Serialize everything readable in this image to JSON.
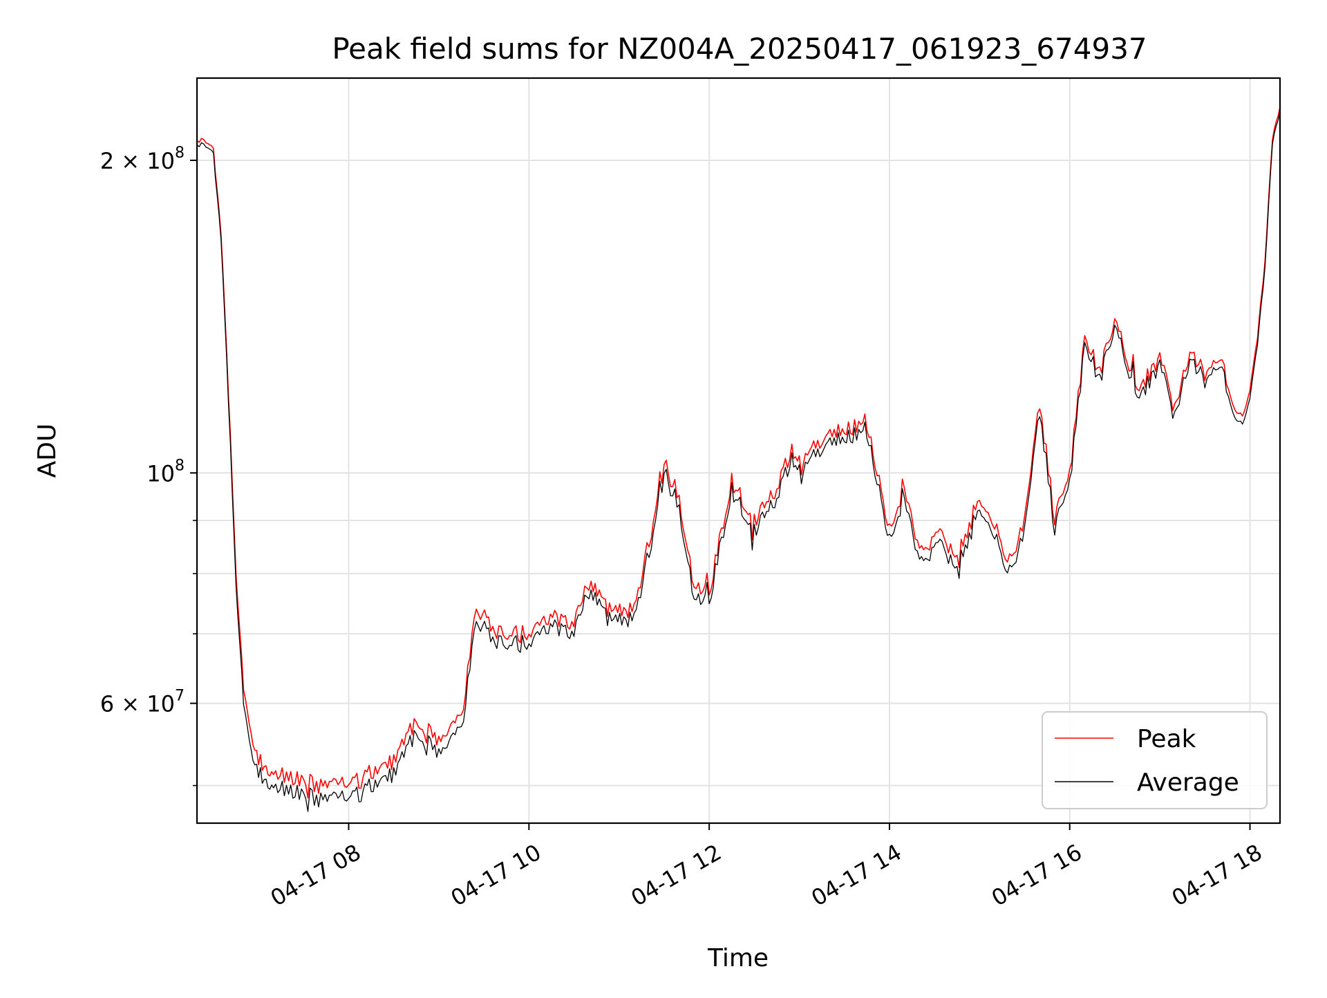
{
  "chart_data": {
    "type": "line",
    "title": "Peak field sums for NZ004A_20250417_061923_674937",
    "xlabel": "Time",
    "ylabel": "ADU",
    "x_scale": "time",
    "y_scale": "log",
    "xlim": [
      "2025-04-17 06:19",
      "2025-04-17 18:20"
    ],
    "ylim": [
      46000000,
      240000000
    ],
    "x_ticks": [
      {
        "value": "2025-04-17 08:00",
        "label": "04-17 08"
      },
      {
        "value": "2025-04-17 10:00",
        "label": "04-17 10"
      },
      {
        "value": "2025-04-17 12:00",
        "label": "04-17 12"
      },
      {
        "value": "2025-04-17 14:00",
        "label": "04-17 14"
      },
      {
        "value": "2025-04-17 16:00",
        "label": "04-17 16"
      },
      {
        "value": "2025-04-17 18:00",
        "label": "04-17 18"
      }
    ],
    "y_ticks_major": [
      {
        "value": 100000000,
        "base": "10",
        "exp": "8"
      },
      {
        "value": 200000000,
        "mant": "2",
        "base": "10",
        "exp": "8"
      },
      {
        "value": 60000000,
        "mant": "6",
        "base": "10",
        "exp": "7"
      }
    ],
    "y_ticks_minor": [
      50000000,
      70000000,
      80000000,
      90000000
    ],
    "grid": true,
    "legend_position": "bottom-right",
    "series": [
      {
        "name": "Peak",
        "color": "#ff0000",
        "x": [
          "2025-04-17 06:19",
          "2025-04-17 06:25",
          "2025-04-17 06:30",
          "2025-04-17 06:35",
          "2025-04-17 06:40",
          "2025-04-17 06:45",
          "2025-04-17 06:50",
          "2025-04-17 06:55",
          "2025-04-17 07:00",
          "2025-04-17 07:05",
          "2025-04-17 07:10",
          "2025-04-17 07:20",
          "2025-04-17 07:30",
          "2025-04-17 07:40",
          "2025-04-17 07:50",
          "2025-04-17 08:00",
          "2025-04-17 08:15",
          "2025-04-17 08:30",
          "2025-04-17 08:45",
          "2025-04-17 09:00",
          "2025-04-17 09:15",
          "2025-04-17 09:25",
          "2025-04-17 09:40",
          "2025-04-17 10:00",
          "2025-04-17 10:10",
          "2025-04-17 10:30",
          "2025-04-17 10:40",
          "2025-04-17 10:55",
          "2025-04-17 11:10",
          "2025-04-17 11:20",
          "2025-04-17 11:30",
          "2025-04-17 11:40",
          "2025-04-17 11:50",
          "2025-04-17 12:00",
          "2025-04-17 12:15",
          "2025-04-17 12:30",
          "2025-04-17 12:45",
          "2025-04-17 12:55",
          "2025-04-17 13:00",
          "2025-04-17 13:15",
          "2025-04-17 13:30",
          "2025-04-17 13:45",
          "2025-04-17 14:00",
          "2025-04-17 14:10",
          "2025-04-17 14:20",
          "2025-04-17 14:35",
          "2025-04-17 14:45",
          "2025-04-17 15:00",
          "2025-04-17 15:10",
          "2025-04-17 15:20",
          "2025-04-17 15:30",
          "2025-04-17 15:40",
          "2025-04-17 15:50",
          "2025-04-17 16:00",
          "2025-04-17 16:10",
          "2025-04-17 16:20",
          "2025-04-17 16:30",
          "2025-04-17 16:45",
          "2025-04-17 17:00",
          "2025-04-17 17:10",
          "2025-04-17 17:20",
          "2025-04-17 17:30",
          "2025-04-17 17:40",
          "2025-04-17 17:50",
          "2025-04-17 17:55",
          "2025-04-17 18:00",
          "2025-04-17 18:05",
          "2025-04-17 18:10",
          "2025-04-17 18:15",
          "2025-04-17 18:20"
        ],
        "y": [
          208000000,
          210000000,
          205000000,
          170000000,
          120000000,
          80000000,
          62000000,
          56000000,
          53000000,
          52000000,
          51500000,
          51000000,
          50500000,
          50000000,
          50500000,
          50000000,
          51000000,
          53000000,
          58000000,
          55000000,
          58000000,
          74000000,
          70000000,
          70000000,
          73000000,
          71000000,
          79000000,
          73000000,
          74000000,
          86000000,
          102000000,
          95000000,
          78000000,
          77000000,
          98000000,
          90000000,
          97000000,
          105000000,
          103000000,
          108000000,
          110000000,
          112000000,
          88000000,
          97000000,
          83000000,
          88000000,
          82000000,
          95000000,
          90000000,
          82000000,
          90000000,
          117000000,
          90000000,
          100000000,
          135000000,
          125000000,
          140000000,
          120000000,
          128000000,
          115000000,
          130000000,
          125000000,
          128000000,
          115000000,
          113000000,
          120000000,
          135000000,
          160000000,
          210000000,
          225000000
        ]
      },
      {
        "name": "Average",
        "color": "#000000",
        "x": [
          "2025-04-17 06:19",
          "2025-04-17 06:25",
          "2025-04-17 06:30",
          "2025-04-17 06:35",
          "2025-04-17 06:40",
          "2025-04-17 06:45",
          "2025-04-17 06:50",
          "2025-04-17 06:55",
          "2025-04-17 07:00",
          "2025-04-17 07:05",
          "2025-04-17 07:10",
          "2025-04-17 07:20",
          "2025-04-17 07:30",
          "2025-04-17 07:40",
          "2025-04-17 07:50",
          "2025-04-17 08:00",
          "2025-04-17 08:15",
          "2025-04-17 08:30",
          "2025-04-17 08:45",
          "2025-04-17 09:00",
          "2025-04-17 09:15",
          "2025-04-17 09:25",
          "2025-04-17 09:40",
          "2025-04-17 10:00",
          "2025-04-17 10:10",
          "2025-04-17 10:30",
          "2025-04-17 10:40",
          "2025-04-17 10:55",
          "2025-04-17 11:10",
          "2025-04-17 11:20",
          "2025-04-17 11:30",
          "2025-04-17 11:40",
          "2025-04-17 11:50",
          "2025-04-17 12:00",
          "2025-04-17 12:15",
          "2025-04-17 12:30",
          "2025-04-17 12:45",
          "2025-04-17 12:55",
          "2025-04-17 13:00",
          "2025-04-17 13:15",
          "2025-04-17 13:30",
          "2025-04-17 13:45",
          "2025-04-17 14:00",
          "2025-04-17 14:10",
          "2025-04-17 14:20",
          "2025-04-17 14:35",
          "2025-04-17 14:45",
          "2025-04-17 15:00",
          "2025-04-17 15:10",
          "2025-04-17 15:20",
          "2025-04-17 15:30",
          "2025-04-17 15:40",
          "2025-04-17 15:50",
          "2025-04-17 16:00",
          "2025-04-17 16:10",
          "2025-04-17 16:20",
          "2025-04-17 16:30",
          "2025-04-17 16:45",
          "2025-04-17 17:00",
          "2025-04-17 17:10",
          "2025-04-17 17:20",
          "2025-04-17 17:30",
          "2025-04-17 17:40",
          "2025-04-17 17:50",
          "2025-04-17 17:55",
          "2025-04-17 18:00",
          "2025-04-17 18:05",
          "2025-04-17 18:10",
          "2025-04-17 18:15",
          "2025-04-17 18:20"
        ],
        "y": [
          206000000,
          208000000,
          203000000,
          168000000,
          118000000,
          78000000,
          60000000,
          54000000,
          51500000,
          50500000,
          50000000,
          49500000,
          49000000,
          48500000,
          49000000,
          48500000,
          49500000,
          51500000,
          56500000,
          53500000,
          56500000,
          72000000,
          68500000,
          68500000,
          71500000,
          69500000,
          77500000,
          71500000,
          72500000,
          84000000,
          100000000,
          93000000,
          76000000,
          75500000,
          96000000,
          88000000,
          95000000,
          103000000,
          101000000,
          106000000,
          108000000,
          110000000,
          86000000,
          95000000,
          81000000,
          86000000,
          80000000,
          93000000,
          88000000,
          80000000,
          88000000,
          115000000,
          88000000,
          98000000,
          133000000,
          123000000,
          138000000,
          118000000,
          126000000,
          113000000,
          128000000,
          123000000,
          126000000,
          113000000,
          111000000,
          118000000,
          133000000,
          158000000,
          208000000,
          223000000
        ]
      }
    ]
  }
}
